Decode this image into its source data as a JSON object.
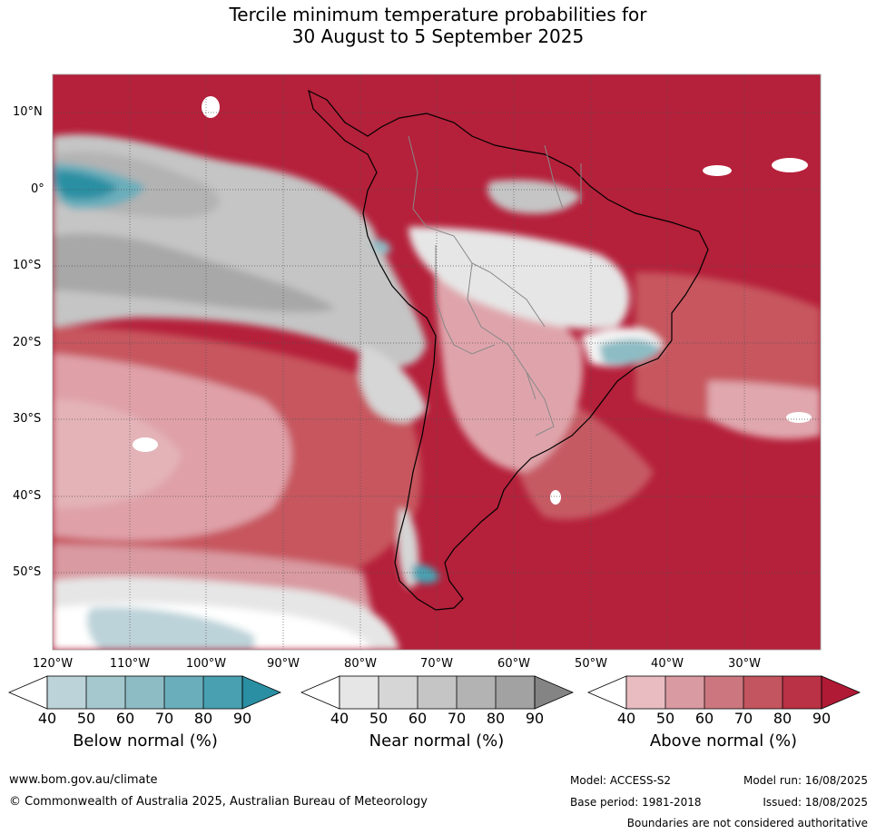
{
  "title": {
    "line1": "Tercile minimum temperature probabilities for",
    "line2": "30 August to 5 September 2025"
  },
  "lat_labels": [
    "10°N",
    "0°",
    "10°S",
    "20°S",
    "30°S",
    "40°S",
    "50°S"
  ],
  "lon_labels": [
    "120°W",
    "110°W",
    "100°W",
    "90°W",
    "80°W",
    "70°W",
    "60°W",
    "50°W",
    "40°W",
    "30°W"
  ],
  "colorbars": [
    {
      "label": "Below normal (%)",
      "ticks": [
        "40",
        "50",
        "60",
        "70",
        "80",
        "90"
      ],
      "colors": [
        "#ffffff",
        "#bcd3d9",
        "#a5c8cf",
        "#8dbcc5",
        "#6aaebb",
        "#48a0b1",
        "#2a8fa3"
      ]
    },
    {
      "label": "Near normal (%)",
      "ticks": [
        "40",
        "50",
        "60",
        "70",
        "80",
        "90"
      ],
      "colors": [
        "#ffffff",
        "#e6e6e6",
        "#d6d6d6",
        "#c5c5c5",
        "#b3b3b3",
        "#a2a2a2",
        "#848484"
      ]
    },
    {
      "label": "Above normal (%)",
      "ticks": [
        "40",
        "50",
        "60",
        "70",
        "80",
        "90"
      ],
      "colors": [
        "#ffffff",
        "#e8bcc1",
        "#d99aa1",
        "#cc7780",
        "#c2555f",
        "#b93245",
        "#b01a35"
      ]
    }
  ],
  "footer": {
    "website": "www.bom.gov.au/climate",
    "copyright": "© Commonwealth of Australia 2025, Australian Bureau of Meteorology",
    "model": "Model: ACCESS-S2",
    "model_run": "Model run: 16/08/2025",
    "base_period": "Base period: 1981-2018",
    "issued": "Issued: 18/08/2025",
    "disclaimer": "Boundaries are not considered authoritative"
  }
}
